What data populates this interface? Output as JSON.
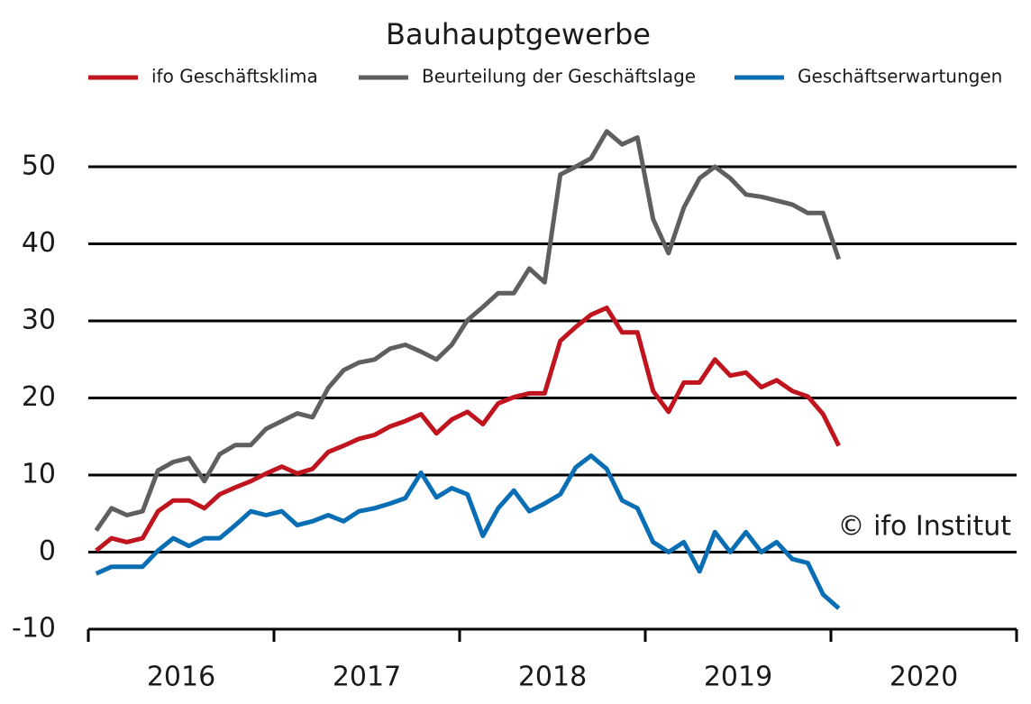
{
  "chart_data": {
    "type": "line",
    "title": "Bauhauptgewerbe",
    "annotation": "© ifo Institut",
    "x": [
      2016.042,
      2016.125,
      2016.208,
      2016.292,
      2016.375,
      2016.458,
      2016.542,
      2016.625,
      2016.708,
      2016.792,
      2016.875,
      2016.958,
      2017.042,
      2017.125,
      2017.208,
      2017.292,
      2017.375,
      2017.458,
      2017.542,
      2017.625,
      2017.708,
      2017.792,
      2017.875,
      2017.958,
      2018.042,
      2018.125,
      2018.208,
      2018.292,
      2018.375,
      2018.458,
      2018.542,
      2018.625,
      2018.708,
      2018.792,
      2018.875,
      2018.958,
      2019.042,
      2019.125,
      2019.208,
      2019.292,
      2019.375,
      2019.458,
      2019.542,
      2019.625,
      2019.708,
      2019.792,
      2019.875,
      2019.958,
      2020.042
    ],
    "series": [
      {
        "name": "ifo Geschäftsklima",
        "color": "#c0141e",
        "values": [
          0.2,
          1.8,
          1.3,
          1.8,
          5.3,
          6.7,
          6.7,
          5.7,
          7.5,
          8.4,
          9.2,
          10.2,
          11.1,
          10.2,
          10.8,
          13.0,
          13.8,
          14.7,
          15.2,
          16.3,
          17.0,
          17.9,
          15.4,
          17.2,
          18.2,
          16.6,
          19.3,
          20.1,
          20.6,
          20.6,
          27.4,
          29.2,
          30.8,
          31.7,
          28.5,
          28.5,
          20.9,
          18.2,
          22.0,
          22.0,
          25.0,
          22.9,
          23.3,
          21.4,
          22.3,
          20.9,
          20.2,
          17.9,
          13.8
        ]
      },
      {
        "name": "Beurteilung der Geschäftslage",
        "color": "#5f5f5f",
        "values": [
          2.8,
          5.7,
          4.8,
          5.3,
          10.6,
          11.7,
          12.2,
          9.2,
          12.7,
          13.9,
          13.9,
          16.0,
          17.0,
          18.0,
          17.5,
          21.3,
          23.6,
          24.6,
          25.0,
          26.4,
          26.9,
          26.0,
          25.0,
          26.9,
          30.1,
          31.8,
          33.6,
          33.6,
          36.8,
          35.0,
          49.0,
          50.0,
          51.1,
          54.6,
          52.9,
          53.8,
          43.2,
          38.8,
          44.7,
          48.5,
          50.0,
          48.5,
          46.4,
          46.1,
          45.6,
          45.1,
          44.0,
          44.0,
          38.0
        ]
      },
      {
        "name": "Geschäftserwartungen",
        "color": "#0a6eb4",
        "values": [
          -2.8,
          -1.9,
          -1.9,
          -1.9,
          0.2,
          1.8,
          0.8,
          1.8,
          1.8,
          3.5,
          5.3,
          4.8,
          5.3,
          3.5,
          4.0,
          4.8,
          4.0,
          5.3,
          5.7,
          6.3,
          7.0,
          10.3,
          7.1,
          8.3,
          7.5,
          2.1,
          5.7,
          8.0,
          5.3,
          6.3,
          7.5,
          11.0,
          12.5,
          10.8,
          6.7,
          5.7,
          1.3,
          0,
          1.3,
          -2.5,
          2.6,
          0,
          2.6,
          0,
          1.3,
          -0.9,
          -1.4,
          -5.5,
          -7.3
        ]
      }
    ],
    "xlim": [
      2016,
      2021
    ],
    "xticks": [
      2016,
      2017,
      2018,
      2019,
      2020
    ],
    "ylim": [
      -10,
      60
    ],
    "yticks": [
      -10,
      0,
      10,
      20,
      30,
      40,
      50
    ],
    "grid": true,
    "legend": "top"
  }
}
